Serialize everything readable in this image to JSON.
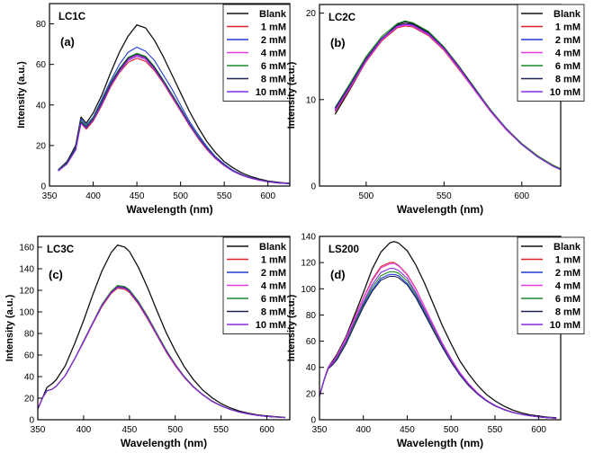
{
  "figure": {
    "colors": {
      "Blank": "#111111",
      "1 mM": "#e0202a",
      "2 mM": "#1f3bd6",
      "4 mM": "#e23ee0",
      "6 mM": "#1f8a2a",
      "8 mM": "#1e2454",
      "10 mM": "#8a2be2"
    }
  },
  "chart_data": [
    {
      "type": "line",
      "panel_label": "(a)",
      "sample": "LC1C",
      "xlabel": "Wavelength (nm)",
      "ylabel": "Intensity (a.u.)",
      "xlim": [
        350,
        625
      ],
      "ylim": [
        0,
        90
      ],
      "xticks": [
        350,
        400,
        450,
        500,
        550,
        600
      ],
      "yticks": [
        0,
        20,
        40,
        60,
        80
      ],
      "legend_position": "top-right",
      "grid": false,
      "x": [
        360,
        370,
        380,
        386,
        392,
        400,
        410,
        420,
        430,
        440,
        450,
        460,
        470,
        480,
        490,
        500,
        510,
        520,
        530,
        540,
        550,
        560,
        570,
        580,
        590,
        600,
        610,
        620,
        625
      ],
      "series": [
        {
          "name": "Blank",
          "values": [
            8,
            12,
            20,
            34,
            31,
            36,
            45,
            56,
            66,
            74,
            79.5,
            78,
            72,
            64,
            55,
            46,
            37,
            29,
            22,
            16.5,
            12,
            9,
            6.5,
            4.8,
            3.5,
            2.5,
            1.9,
            1.5,
            1.4
          ]
        },
        {
          "name": "1 mM",
          "values": [
            7.5,
            11,
            18,
            31,
            28,
            32,
            40,
            49,
            56,
            61,
            63,
            61.5,
            57,
            51,
            44,
            37,
            30,
            23.5,
            18,
            13.5,
            10,
            7.3,
            5.3,
            3.9,
            2.9,
            2.1,
            1.6,
            1.3,
            1.2
          ]
        },
        {
          "name": "2 mM",
          "values": [
            8,
            11.5,
            19,
            33,
            30,
            34,
            43,
            52,
            60,
            66,
            68.5,
            66.5,
            62,
            55,
            48,
            40,
            32,
            25.5,
            19.5,
            14.5,
            10.8,
            7.8,
            5.7,
            4.2,
            3.1,
            2.3,
            1.7,
            1.4,
            1.3
          ]
        },
        {
          "name": "4 mM",
          "values": [
            7.5,
            11,
            18,
            32,
            29,
            33,
            41,
            50,
            57,
            62.5,
            64.5,
            63,
            58,
            52,
            45,
            38,
            30.5,
            24,
            18.5,
            13.8,
            10.2,
            7.4,
            5.4,
            4,
            3,
            2.2,
            1.6,
            1.3,
            1.2
          ]
        },
        {
          "name": "6 mM",
          "values": [
            7.8,
            11.2,
            18.5,
            32,
            29.5,
            33.5,
            42,
            51,
            58,
            63.5,
            65.5,
            64,
            59,
            52.5,
            45.5,
            38.5,
            31,
            24.5,
            18.8,
            14,
            10.4,
            7.5,
            5.5,
            4,
            3,
            2.2,
            1.6,
            1.3,
            1.2
          ]
        },
        {
          "name": "8 mM",
          "values": [
            7.6,
            11,
            18.2,
            31.5,
            29,
            33,
            41.5,
            50.5,
            57.5,
            63,
            65,
            63.5,
            58.5,
            52,
            45,
            38,
            30.8,
            24.2,
            18.6,
            13.9,
            10.3,
            7.4,
            5.4,
            4,
            3,
            2.2,
            1.6,
            1.3,
            1.2
          ]
        },
        {
          "name": "10 mM",
          "values": [
            7.4,
            10.8,
            17.8,
            31,
            28.5,
            32.5,
            40.5,
            49.5,
            56.5,
            62,
            64,
            62.5,
            57.5,
            51.5,
            44.5,
            37.5,
            30.3,
            23.8,
            18.3,
            13.7,
            10.1,
            7.3,
            5.3,
            3.9,
            2.9,
            2.1,
            1.6,
            1.3,
            1.2
          ]
        }
      ]
    },
    {
      "type": "line",
      "panel_label": "(b)",
      "sample": "LC2C",
      "xlabel": "Wavelength (nm)",
      "ylabel": "Intensity (a.u.)",
      "xlim": [
        470,
        625
      ],
      "ylim": [
        0,
        21
      ],
      "xticks": [
        500,
        550,
        600
      ],
      "yticks": [
        0,
        10,
        20
      ],
      "legend_position": "top-right",
      "grid": false,
      "x": [
        480,
        490,
        500,
        510,
        520,
        525,
        530,
        540,
        550,
        560,
        570,
        580,
        590,
        600,
        610,
        620,
        625
      ],
      "series": [
        {
          "name": "Blank",
          "values": [
            8.3,
            11.3,
            14.5,
            17,
            18.7,
            19,
            18.8,
            17.8,
            16,
            13.7,
            11.2,
            8.8,
            6.6,
            4.9,
            3.5,
            2.4,
            2
          ]
        },
        {
          "name": "1 mM",
          "values": [
            8.6,
            11.4,
            14.4,
            16.8,
            18.3,
            18.5,
            18.4,
            17.4,
            15.7,
            13.4,
            11,
            8.6,
            6.5,
            4.8,
            3.4,
            2.3,
            1.9
          ]
        },
        {
          "name": "2 mM",
          "values": [
            8.9,
            11.7,
            14.7,
            17,
            18.5,
            18.7,
            18.6,
            17.6,
            15.9,
            13.6,
            11.1,
            8.7,
            6.6,
            4.8,
            3.4,
            2.3,
            1.9
          ]
        },
        {
          "name": "4 mM",
          "values": [
            8.7,
            11.5,
            14.5,
            16.9,
            18.4,
            18.6,
            18.5,
            17.5,
            15.8,
            13.5,
            11,
            8.6,
            6.5,
            4.8,
            3.4,
            2.3,
            1.9
          ]
        },
        {
          "name": "6 mM",
          "values": [
            9.1,
            12,
            15,
            17.3,
            18.8,
            19.1,
            18.9,
            17.9,
            16.1,
            13.8,
            11.3,
            8.8,
            6.7,
            4.9,
            3.5,
            2.4,
            2
          ]
        },
        {
          "name": "8 mM",
          "values": [
            9,
            11.8,
            14.8,
            17.1,
            18.6,
            18.8,
            18.7,
            17.7,
            16,
            13.7,
            11.2,
            8.7,
            6.6,
            4.8,
            3.4,
            2.3,
            1.9
          ]
        },
        {
          "name": "10 mM",
          "values": [
            8.8,
            11.6,
            14.6,
            17,
            18.5,
            18.7,
            18.6,
            17.6,
            15.9,
            13.6,
            11.1,
            8.7,
            6.6,
            4.8,
            3.4,
            2.3,
            1.9
          ]
        }
      ]
    },
    {
      "type": "line",
      "panel_label": "(c)",
      "sample": "LC3C",
      "xlabel": "Wavelength (nm)",
      "ylabel": "Intensity (a.u.)",
      "xlim": [
        350,
        625
      ],
      "ylim": [
        0,
        170
      ],
      "xticks": [
        350,
        400,
        450,
        500,
        550,
        600
      ],
      "yticks": [
        0,
        20,
        40,
        60,
        80,
        100,
        120,
        140,
        160
      ],
      "legend_position": "top-right",
      "grid": false,
      "x": [
        350,
        355,
        360,
        365,
        370,
        380,
        390,
        400,
        410,
        420,
        430,
        437,
        445,
        450,
        460,
        470,
        480,
        490,
        500,
        510,
        520,
        530,
        540,
        550,
        560,
        570,
        580,
        590,
        600,
        610,
        620
      ],
      "series": [
        {
          "name": "Blank",
          "values": [
            10,
            20,
            30,
            33,
            37,
            50,
            70,
            92,
            116,
            138,
            155,
            162,
            160,
            156,
            141,
            122,
            101,
            81,
            64,
            49,
            37,
            27.5,
            20.5,
            15,
            11,
            8,
            6,
            4.5,
            3.5,
            2.8,
            2.2
          ]
        },
        {
          "name": "1 mM",
          "values": [
            10,
            20,
            27,
            28,
            31,
            41,
            56,
            72,
            89,
            105,
            117,
            122,
            121,
            118,
            107,
            93,
            78,
            63,
            50,
            39,
            30,
            23,
            17,
            12.8,
            9.5,
            7,
            5.3,
            4,
            3.1,
            2.5,
            2
          ]
        },
        {
          "name": "2 mM",
          "values": [
            10,
            20,
            27,
            28,
            31,
            41,
            56,
            73,
            90,
            106,
            118,
            123,
            122,
            119,
            108,
            94,
            79,
            64,
            51,
            39.5,
            30.3,
            23.2,
            17.2,
            13,
            9.6,
            7.1,
            5.3,
            4,
            3.1,
            2.5,
            2
          ]
        },
        {
          "name": "4 mM",
          "values": [
            10,
            20,
            27,
            28,
            31,
            41,
            56,
            73,
            90,
            107,
            119,
            124,
            123,
            120,
            109,
            95,
            79.5,
            64.5,
            51.3,
            39.8,
            30.5,
            23.3,
            17.3,
            13,
            9.6,
            7.1,
            5.3,
            4,
            3.1,
            2.5,
            2
          ]
        },
        {
          "name": "6 mM",
          "values": [
            10,
            20,
            27,
            28,
            31,
            41,
            56,
            73,
            90,
            107,
            119,
            124.5,
            123.5,
            120.5,
            109.5,
            95.5,
            80,
            65,
            51.5,
            40,
            30.6,
            23.4,
            17.4,
            13.1,
            9.7,
            7.1,
            5.3,
            4,
            3.1,
            2.5,
            2
          ]
        },
        {
          "name": "8 mM",
          "values": [
            10,
            20,
            27,
            28,
            31,
            41,
            56,
            72.5,
            89.5,
            106,
            118,
            123.5,
            122.5,
            119.5,
            108.5,
            94.5,
            79,
            64,
            51,
            39.6,
            30.3,
            23.2,
            17.2,
            13,
            9.6,
            7.1,
            5.3,
            4,
            3.1,
            2.5,
            2
          ]
        },
        {
          "name": "10 mM",
          "values": [
            10,
            20,
            27,
            28,
            31,
            41,
            56,
            72.5,
            89.5,
            106,
            118,
            123,
            122,
            119,
            108,
            94,
            78.8,
            63.8,
            50.8,
            39.4,
            30.2,
            23.1,
            17.1,
            12.9,
            9.6,
            7,
            5.3,
            4,
            3.1,
            2.5,
            2
          ]
        }
      ]
    },
    {
      "type": "line",
      "panel_label": "(d)",
      "sample": "LS200",
      "xlabel": "Wavelength (nm)",
      "ylabel": "Intensity (a.u.)",
      "xlim": [
        350,
        625
      ],
      "ylim": [
        0,
        140
      ],
      "xticks": [
        350,
        400,
        450,
        500,
        550,
        600
      ],
      "yticks": [
        0,
        20,
        40,
        60,
        80,
        100,
        120,
        140
      ],
      "legend_position": "top-right",
      "grid": false,
      "x": [
        350,
        355,
        360,
        365,
        370,
        380,
        390,
        400,
        410,
        420,
        430,
        435,
        440,
        450,
        460,
        470,
        480,
        490,
        500,
        510,
        520,
        530,
        540,
        550,
        560,
        570,
        580,
        590,
        600,
        610,
        620
      ],
      "series": [
        {
          "name": "Blank",
          "values": [
            18,
            30,
            40,
            45,
            50,
            63,
            80,
            97,
            115,
            128,
            135,
            136,
            135,
            129,
            118,
            104,
            88,
            72,
            58,
            45,
            35,
            26.5,
            19.5,
            14.5,
            10.5,
            7.5,
            5.3,
            3.8,
            2.8,
            2,
            1.5
          ]
        },
        {
          "name": "1 mM",
          "values": [
            18,
            30,
            40,
            44,
            49,
            62,
            78,
            93,
            107,
            117,
            120,
            120,
            118,
            111,
            100,
            86,
            72,
            58.5,
            46.5,
            36,
            27.5,
            20.5,
            15,
            11,
            8,
            5.8,
            4.2,
            3,
            2.2,
            1.6,
            1.2
          ]
        },
        {
          "name": "2 mM",
          "values": [
            18,
            30,
            39,
            42,
            46,
            58,
            73,
            87,
            99,
            108,
            111,
            111,
            110,
            104,
            94,
            81.5,
            68.5,
            56,
            44.5,
            34.5,
            26.3,
            19.8,
            14.6,
            10.7,
            7.8,
            5.6,
            4.1,
            3,
            2.2,
            1.6,
            1.2
          ]
        },
        {
          "name": "4 mM",
          "values": [
            18,
            30,
            40,
            44,
            49,
            62,
            77.5,
            92.5,
            106,
            116,
            119,
            119.5,
            117.5,
            110.5,
            99.5,
            86,
            72,
            58.5,
            46.5,
            36,
            27.5,
            20.5,
            15,
            11,
            8,
            5.8,
            4.2,
            3,
            2.2,
            1.6,
            1.2
          ]
        },
        {
          "name": "6 mM",
          "values": [
            18,
            30,
            39,
            42.5,
            47,
            59,
            74,
            88.5,
            101,
            110,
            113,
            113,
            112,
            106,
            95.5,
            83,
            69.5,
            56.8,
            45,
            35,
            26.7,
            20,
            14.8,
            10.8,
            7.9,
            5.7,
            4.1,
            3,
            2.2,
            1.6,
            1.2
          ]
        },
        {
          "name": "8 mM",
          "values": [
            18,
            30,
            39,
            42,
            46,
            57.5,
            72,
            86,
            98,
            106.5,
            109.5,
            109.5,
            108.5,
            103,
            93,
            80.5,
            67.8,
            55.4,
            44,
            34.2,
            26,
            19.6,
            14.5,
            10.6,
            7.7,
            5.6,
            4.1,
            3,
            2.2,
            1.6,
            1.2
          ]
        },
        {
          "name": "10 mM",
          "values": [
            18,
            30,
            39.5,
            43,
            48,
            60,
            75.5,
            90,
            103,
            112.5,
            115.5,
            115.5,
            114,
            108,
            97,
            84,
            70.5,
            57.5,
            45.6,
            35.3,
            27,
            20.2,
            14.9,
            10.9,
            7.9,
            5.7,
            4.2,
            3,
            2.2,
            1.6,
            1.2
          ]
        }
      ]
    }
  ]
}
